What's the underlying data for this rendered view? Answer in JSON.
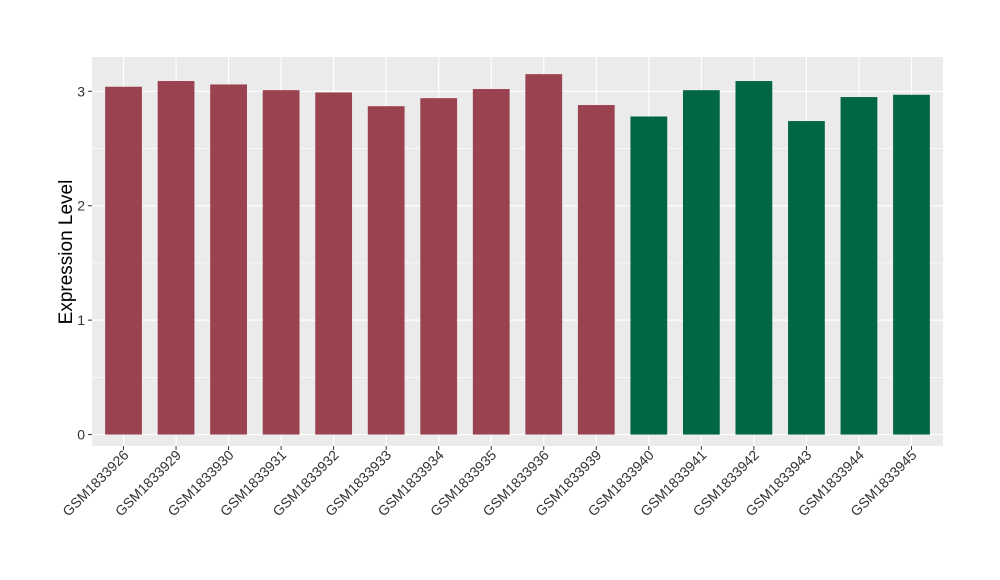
{
  "chart_data": {
    "type": "bar",
    "title": "",
    "xlabel": "",
    "ylabel": "Expression Level",
    "ylim": [
      -0.1,
      3.3
    ],
    "yticks": [
      0,
      1,
      2,
      3
    ],
    "grid": true,
    "legend": "none",
    "categories": [
      "GSM1833926",
      "GSM1833929",
      "GSM1833930",
      "GSM1833931",
      "GSM1833932",
      "GSM1833933",
      "GSM1833934",
      "GSM1833935",
      "GSM1833936",
      "GSM1833939",
      "GSM1833940",
      "GSM1833941",
      "GSM1833942",
      "GSM1833943",
      "GSM1833944",
      "GSM1833945"
    ],
    "values": [
      3.04,
      3.09,
      3.06,
      3.01,
      2.99,
      2.87,
      2.94,
      3.02,
      3.15,
      2.88,
      2.78,
      3.01,
      3.09,
      2.74,
      2.95,
      2.97
    ],
    "bar_colors": [
      "#9a4250",
      "#9a4250",
      "#9a4250",
      "#9a4250",
      "#9a4250",
      "#9a4250",
      "#9a4250",
      "#9a4250",
      "#9a4250",
      "#9a4250",
      "#006644",
      "#006644",
      "#006644",
      "#006644",
      "#006644",
      "#006644"
    ],
    "panel_background": "#ebebeb",
    "grid_color": "#ffffff"
  }
}
